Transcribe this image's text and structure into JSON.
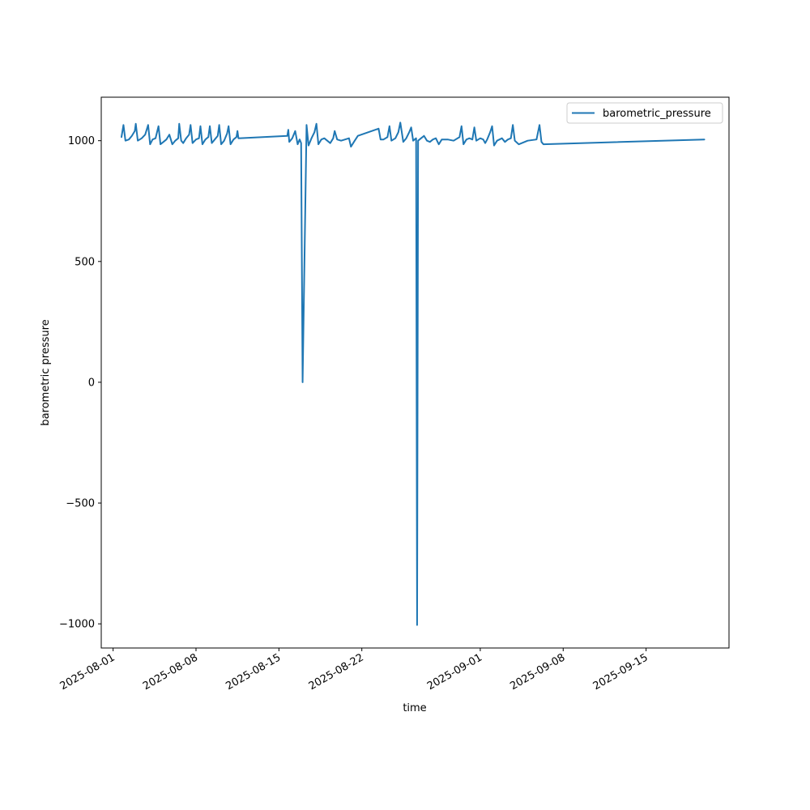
{
  "chart_data": {
    "type": "line",
    "title": "",
    "xlabel": "time",
    "ylabel": "barometric pressure",
    "x_is_date": true,
    "xlim": [
      "2025-07-31T00:00",
      "2025-09-22T00:00"
    ],
    "ylim": [
      -1100,
      1180
    ],
    "x_ticks": [
      "2025-08-01",
      "2025-08-08",
      "2025-08-15",
      "2025-08-22",
      "2025-09-01",
      "2025-09-08",
      "2025-09-15"
    ],
    "y_ticks": [
      -1000,
      -500,
      0,
      500,
      1000
    ],
    "y_tick_labels": [
      "−1000",
      "−500",
      "0",
      "500",
      "1000"
    ],
    "legend": {
      "position": "top-right",
      "entries": [
        "barometric_pressure"
      ]
    },
    "grid": false,
    "series": [
      {
        "name": "barometric_pressure",
        "color": "#1f77b4",
        "points": [
          [
            "2025-08-01T17:00",
            1015
          ],
          [
            "2025-08-01T21:00",
            1065
          ],
          [
            "2025-08-02T01:00",
            1000
          ],
          [
            "2025-08-02T08:00",
            1005
          ],
          [
            "2025-08-02T14:00",
            1020
          ],
          [
            "2025-08-02T20:00",
            1040
          ],
          [
            "2025-08-02T22:00",
            1070
          ],
          [
            "2025-08-03T02:00",
            1000
          ],
          [
            "2025-08-03T10:00",
            1010
          ],
          [
            "2025-08-03T17:00",
            1025
          ],
          [
            "2025-08-03T23:00",
            1065
          ],
          [
            "2025-08-04T03:00",
            985
          ],
          [
            "2025-08-04T08:00",
            1005
          ],
          [
            "2025-08-04T14:00",
            1010
          ],
          [
            "2025-08-04T20:00",
            1060
          ],
          [
            "2025-08-05T00:00",
            985
          ],
          [
            "2025-08-05T06:00",
            995
          ],
          [
            "2025-08-05T12:00",
            1005
          ],
          [
            "2025-08-05T18:00",
            1025
          ],
          [
            "2025-08-06T00:00",
            985
          ],
          [
            "2025-08-06T06:00",
            1000
          ],
          [
            "2025-08-06T12:00",
            1010
          ],
          [
            "2025-08-06T14:00",
            1070
          ],
          [
            "2025-08-06T18:00",
            1000
          ],
          [
            "2025-08-06T22:00",
            990
          ],
          [
            "2025-08-07T04:00",
            1010
          ],
          [
            "2025-08-07T10:00",
            1025
          ],
          [
            "2025-08-07T13:00",
            1065
          ],
          [
            "2025-08-07T17:00",
            990
          ],
          [
            "2025-08-08T00:00",
            1005
          ],
          [
            "2025-08-08T06:00",
            1010
          ],
          [
            "2025-08-08T09:00",
            1060
          ],
          [
            "2025-08-08T13:00",
            985
          ],
          [
            "2025-08-08T19:00",
            1005
          ],
          [
            "2025-08-09T01:00",
            1015
          ],
          [
            "2025-08-09T04:00",
            1060
          ],
          [
            "2025-08-09T08:00",
            990
          ],
          [
            "2025-08-09T14:00",
            1005
          ],
          [
            "2025-08-09T20:00",
            1020
          ],
          [
            "2025-08-09T23:00",
            1065
          ],
          [
            "2025-08-10T03:00",
            985
          ],
          [
            "2025-08-10T09:00",
            1000
          ],
          [
            "2025-08-10T15:00",
            1030
          ],
          [
            "2025-08-10T18:00",
            1060
          ],
          [
            "2025-08-10T22:00",
            985
          ],
          [
            "2025-08-11T04:00",
            1005
          ],
          [
            "2025-08-11T10:00",
            1015
          ],
          [
            "2025-08-11T12:00",
            1040
          ],
          [
            "2025-08-11T14:00",
            1010
          ],
          [
            "2025-08-15T17:00",
            1020
          ],
          [
            "2025-08-15T19:00",
            1045
          ],
          [
            "2025-08-15T21:00",
            995
          ],
          [
            "2025-08-16T03:00",
            1010
          ],
          [
            "2025-08-16T09:00",
            1040
          ],
          [
            "2025-08-16T14:00",
            985
          ],
          [
            "2025-08-16T18:00",
            1005
          ],
          [
            "2025-08-16T21:00",
            990
          ],
          [
            "2025-08-17T00:00",
            0
          ],
          [
            "2025-08-17T08:00",
            1065
          ],
          [
            "2025-08-17T12:00",
            980
          ],
          [
            "2025-08-17T18:00",
            1010
          ],
          [
            "2025-08-18T00:00",
            1035
          ],
          [
            "2025-08-18T04:00",
            1070
          ],
          [
            "2025-08-18T08:00",
            985
          ],
          [
            "2025-08-18T14:00",
            1005
          ],
          [
            "2025-08-18T20:00",
            1010
          ],
          [
            "2025-08-19T02:00",
            1000
          ],
          [
            "2025-08-19T08:00",
            990
          ],
          [
            "2025-08-19T14:00",
            1010
          ],
          [
            "2025-08-19T17:00",
            1040
          ],
          [
            "2025-08-19T22:00",
            1005
          ],
          [
            "2025-08-20T06:00",
            1000
          ],
          [
            "2025-08-20T14:00",
            1005
          ],
          [
            "2025-08-20T22:00",
            1010
          ],
          [
            "2025-08-21T02:00",
            975
          ],
          [
            "2025-08-21T08:00",
            995
          ],
          [
            "2025-08-21T16:00",
            1020
          ],
          [
            "2025-08-23T10:00",
            1050
          ],
          [
            "2025-08-23T14:00",
            1005
          ],
          [
            "2025-08-23T20:00",
            1005
          ],
          [
            "2025-08-24T04:00",
            1015
          ],
          [
            "2025-08-24T08:00",
            1060
          ],
          [
            "2025-08-24T12:00",
            1000
          ],
          [
            "2025-08-24T20:00",
            1010
          ],
          [
            "2025-08-25T02:00",
            1035
          ],
          [
            "2025-08-25T06:00",
            1075
          ],
          [
            "2025-08-25T12:00",
            995
          ],
          [
            "2025-08-25T18:00",
            1010
          ],
          [
            "2025-08-26T00:00",
            1035
          ],
          [
            "2025-08-26T04:00",
            1055
          ],
          [
            "2025-08-26T08:00",
            1000
          ],
          [
            "2025-08-26T14:00",
            1010
          ],
          [
            "2025-08-26T16:00",
            -1005
          ],
          [
            "2025-08-26T18:00",
            1000
          ],
          [
            "2025-08-27T00:00",
            1010
          ],
          [
            "2025-08-27T06:00",
            1020
          ],
          [
            "2025-08-27T12:00",
            1000
          ],
          [
            "2025-08-27T18:00",
            995
          ],
          [
            "2025-08-28T00:00",
            1005
          ],
          [
            "2025-08-28T06:00",
            1010
          ],
          [
            "2025-08-28T12:00",
            985
          ],
          [
            "2025-08-28T18:00",
            1005
          ],
          [
            "2025-08-29T06:00",
            1005
          ],
          [
            "2025-08-29T18:00",
            1000
          ],
          [
            "2025-08-30T06:00",
            1015
          ],
          [
            "2025-08-30T10:00",
            1060
          ],
          [
            "2025-08-30T14:00",
            985
          ],
          [
            "2025-08-30T20:00",
            1005
          ],
          [
            "2025-08-31T02:00",
            1010
          ],
          [
            "2025-08-31T08:00",
            1005
          ],
          [
            "2025-08-31T12:00",
            1055
          ],
          [
            "2025-08-31T16:00",
            1000
          ],
          [
            "2025-09-01T00:00",
            1010
          ],
          [
            "2025-09-01T06:00",
            1005
          ],
          [
            "2025-09-01T10:00",
            990
          ],
          [
            "2025-09-01T14:00",
            1005
          ],
          [
            "2025-09-01T20:00",
            1035
          ],
          [
            "2025-09-02T00:00",
            1060
          ],
          [
            "2025-09-02T04:00",
            980
          ],
          [
            "2025-09-02T10:00",
            1000
          ],
          [
            "2025-09-02T20:00",
            1010
          ],
          [
            "2025-09-03T02:00",
            995
          ],
          [
            "2025-09-03T08:00",
            1005
          ],
          [
            "2025-09-03T14:00",
            1010
          ],
          [
            "2025-09-03T18:00",
            1065
          ],
          [
            "2025-09-03T22:00",
            1000
          ],
          [
            "2025-09-04T06:00",
            985
          ],
          [
            "2025-09-05T00:00",
            1000
          ],
          [
            "2025-09-05T18:00",
            1005
          ],
          [
            "2025-09-06T00:00",
            1065
          ],
          [
            "2025-09-06T04:00",
            995
          ],
          [
            "2025-09-06T08:00",
            985
          ],
          [
            "2025-09-19T22:00",
            1005
          ]
        ]
      }
    ]
  }
}
